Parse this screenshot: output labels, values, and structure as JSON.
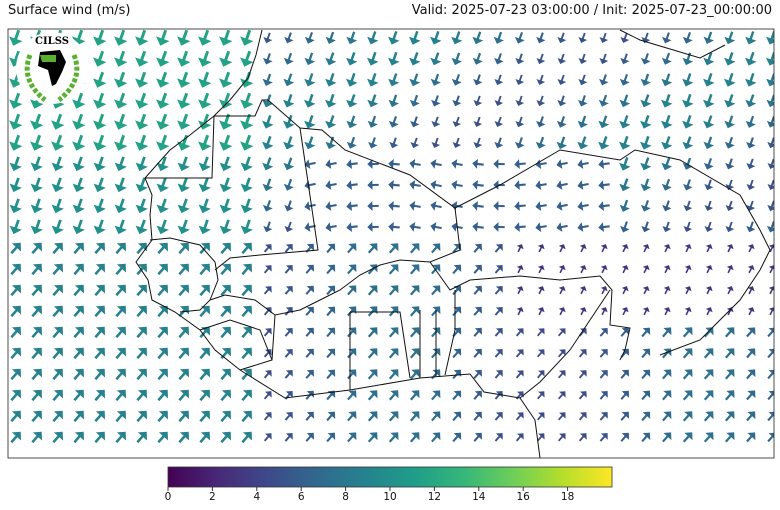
{
  "header": {
    "title": "Surface wind (m/s)",
    "valid_info": "Valid: 2025-07-23 03:00:00 / Init: 2025-07-23_00:00:00"
  },
  "logo": {
    "text": "CILSS"
  },
  "colorbar": {
    "colormap": "viridis",
    "range": [
      0,
      20
    ],
    "ticks": [
      "0",
      "2",
      "4",
      "6",
      "8",
      "10",
      "12",
      "14",
      "16",
      "18"
    ],
    "colors": [
      "#440154",
      "#482878",
      "#3e4989",
      "#31688e",
      "#26828e",
      "#1f9e89",
      "#35b779",
      "#6ece58",
      "#b5de2b",
      "#fde725"
    ]
  }
}
